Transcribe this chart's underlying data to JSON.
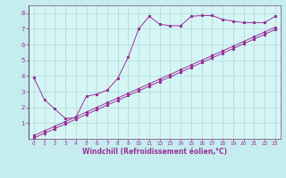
{
  "bg_color": "#c5ecee",
  "plot_bg": "#d6f5f5",
  "line_color": "#993399",
  "grid_color": "#b0d8d8",
  "spine_color": "#886688",
  "xlabel": "Windchill (Refroidissement éolien,°C)",
  "xlabel_color": "#993399",
  "xlabel_fontsize": 5.5,
  "tick_color": "#993399",
  "tick_fontsize": 5,
  "xlim": [
    -0.5,
    23.5
  ],
  "ylim": [
    0,
    8.5
  ],
  "yticks": [
    1,
    2,
    3,
    4,
    5,
    6,
    7,
    8
  ],
  "xticks": [
    0,
    1,
    2,
    3,
    4,
    5,
    6,
    7,
    8,
    9,
    10,
    11,
    12,
    13,
    14,
    15,
    16,
    17,
    18,
    19,
    20,
    21,
    22,
    23
  ],
  "series1_x": [
    0,
    1,
    2,
    3,
    4,
    5,
    6,
    7,
    8,
    9,
    10,
    11,
    12,
    13,
    14,
    15,
    16,
    17,
    18,
    19,
    20,
    21,
    22,
    23
  ],
  "series1_y": [
    3.9,
    2.5,
    1.9,
    1.3,
    1.35,
    2.7,
    2.85,
    3.1,
    3.85,
    5.2,
    7.0,
    7.8,
    7.3,
    7.2,
    7.2,
    7.8,
    7.85,
    7.85,
    7.6,
    7.5,
    7.4,
    7.4,
    7.4,
    7.8
  ],
  "series2_x": [
    0,
    1,
    2,
    3,
    4,
    5,
    6,
    7,
    8,
    9,
    10,
    11,
    12,
    13,
    14,
    15,
    16,
    17,
    18,
    19,
    20,
    21,
    22,
    23
  ],
  "series2_y": [
    0.2,
    0.5,
    0.8,
    1.1,
    1.4,
    1.7,
    2.0,
    2.3,
    2.6,
    2.9,
    3.2,
    3.5,
    3.8,
    4.1,
    4.4,
    4.7,
    5.0,
    5.3,
    5.6,
    5.9,
    6.2,
    6.5,
    6.8,
    7.1
  ],
  "series3_x": [
    0,
    1,
    2,
    3,
    4,
    5,
    6,
    7,
    8,
    9,
    10,
    11,
    12,
    13,
    14,
    15,
    16,
    17,
    18,
    19,
    20,
    21,
    22,
    23
  ],
  "series3_y": [
    0.05,
    0.35,
    0.65,
    0.95,
    1.25,
    1.55,
    1.85,
    2.15,
    2.45,
    2.75,
    3.05,
    3.35,
    3.65,
    3.95,
    4.25,
    4.55,
    4.85,
    5.15,
    5.45,
    5.75,
    6.05,
    6.35,
    6.65,
    6.95
  ]
}
